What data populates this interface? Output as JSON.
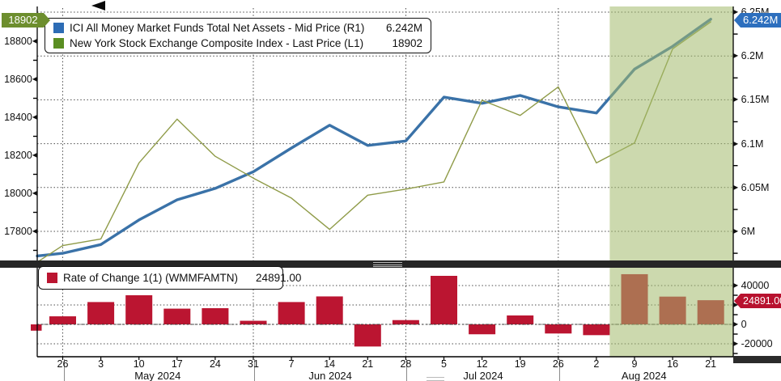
{
  "top_legend": {
    "series1_label": "ICI All Money Market Funds Total Net Assets - Mid Price (R1)",
    "series1_value": "6.242M",
    "series2_label": "New York Stock Exchange Composite Index - Last Price (L1)",
    "series2_value": "18902"
  },
  "bottom_legend": {
    "label": "Rate of Change 1(1) (WMMFAMTN)",
    "value": "24891.00"
  },
  "markers": {
    "left_top": "18902",
    "right_top": "6.242M",
    "right_bottom": "24891.00"
  },
  "colors": {
    "blue_line": "#3a72a8",
    "blue_swatch": "#2d6cb5",
    "blue_box": "#2d6fbe",
    "olive_line": "#8f9b48",
    "green_swatch": "#5a8e22",
    "green_box": "#6d8e2e",
    "crimson": "#bb1531",
    "crimson_box": "#b8122f",
    "grid": "#4a4a4a",
    "highlight": "rgba(162,186,108,0.55)"
  },
  "chart_data": {
    "type": [
      "line",
      "bar"
    ],
    "x_tick_labels": [
      "26",
      "3",
      "10",
      "17",
      "24",
      "31",
      "7",
      "14",
      "21",
      "28",
      "5",
      "12",
      "19",
      "26",
      "2",
      "9",
      "16",
      "21"
    ],
    "month_labels": [
      "May 2024",
      "Jun 2024",
      "Jul 2024",
      "Aug 2024"
    ],
    "month_center_ticks": [
      2.49,
      7.02,
      11.03,
      15.25
    ],
    "month_separator_ticks": [
      0,
      5,
      9,
      13
    ],
    "highlight_region": {
      "start_tick": 14.35,
      "end": "right-edge"
    },
    "top_panel": {
      "right_axis": {
        "labels": [
          "6.25M",
          "6.2M",
          "6.15M",
          "6.1M",
          "6.05M",
          "6M"
        ],
        "values": [
          6.25,
          6.2,
          6.15,
          6.1,
          6.05,
          6.0
        ],
        "minor_values": [
          6.225,
          6.175,
          6.125,
          6.075,
          6.025,
          5.975
        ]
      },
      "left_axis": {
        "labels": [
          "18800",
          "18600",
          "18400",
          "18200",
          "18000",
          "17800"
        ],
        "values": [
          18800,
          18600,
          18400,
          18200,
          18000,
          17800
        ],
        "minor_values": [
          18900,
          18700,
          18500,
          18300,
          18100,
          17900,
          17700
        ]
      },
      "series": [
        {
          "name": "ICI All Money Market Funds Total Net Assets - Mid Price",
          "axis": "right",
          "width": 3.4,
          "edge_value": 5.972,
          "values": [
            5.975,
            5.985,
            6.013,
            6.036,
            6.049,
            6.068,
            6.095,
            6.121,
            6.098,
            6.103,
            6.153,
            6.146,
            6.155,
            6.142,
            6.135,
            6.185,
            6.211,
            6.242
          ]
        },
        {
          "name": "New York Stock Exchange Composite Index - Last Price",
          "axis": "left",
          "width": 1.4,
          "edge_value": 17638,
          "values": [
            17725,
            17760,
            18160,
            18390,
            18195,
            18080,
            17975,
            17810,
            17990,
            18022,
            18060,
            18490,
            18410,
            18560,
            18160,
            18265,
            18760,
            18902
          ]
        }
      ]
    },
    "bottom_panel": {
      "right_axis": {
        "labels": [
          "40000",
          "20000",
          "0",
          "-20000"
        ],
        "values": [
          40000,
          20000,
          0,
          -20000
        ],
        "minor_values": [
          30000,
          10000,
          -10000,
          -30000
        ]
      },
      "bars": {
        "name": "Rate of Change 1(1) (WMMFAMTN)",
        "pre_bar_value": -6500,
        "values": [
          8300,
          23000,
          30000,
          16200,
          16700,
          3700,
          23000,
          28800,
          -22800,
          4400,
          50000,
          -10200,
          9200,
          -9400,
          -11100,
          51700,
          28600,
          24891
        ]
      }
    }
  }
}
